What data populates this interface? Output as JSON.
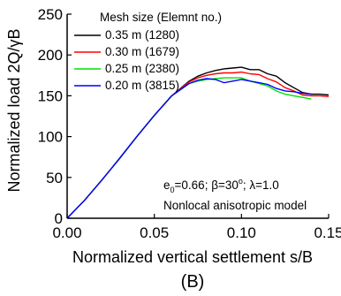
{
  "chart_data": {
    "type": "line",
    "xlabel": "Normalized vertical settlement s/B",
    "ylabel": "Normalized load 2Q/γB",
    "xlim": [
      0,
      0.15
    ],
    "ylim": [
      0,
      250
    ],
    "xticks": [
      "0.00",
      "0.05",
      "0.10",
      "0.15"
    ],
    "yticks": [
      "0",
      "50",
      "100",
      "150",
      "200",
      "250"
    ],
    "grid": false,
    "legend": {
      "title": "Mesh size (Elemnt no.)",
      "position": "top-right"
    },
    "series": [
      {
        "name": "0.35 m (1280)",
        "color": "#000000",
        "x": [
          0,
          0.01,
          0.02,
          0.03,
          0.04,
          0.05,
          0.06,
          0.07,
          0.075,
          0.08,
          0.085,
          0.09,
          0.095,
          0.1,
          0.105,
          0.11,
          0.115,
          0.12,
          0.125,
          0.13,
          0.135,
          0.14,
          0.145,
          0.15
        ],
        "y": [
          0,
          22,
          47,
          73,
          100,
          126,
          150,
          168,
          174,
          178,
          181,
          183,
          184,
          185,
          182,
          182,
          177,
          174,
          166,
          160,
          154,
          152,
          152,
          151
        ]
      },
      {
        "name": "0.30 m (1679)",
        "color": "#ff0000",
        "x": [
          0,
          0.01,
          0.02,
          0.03,
          0.04,
          0.05,
          0.06,
          0.07,
          0.075,
          0.08,
          0.085,
          0.09,
          0.095,
          0.1,
          0.105,
          0.11,
          0.115,
          0.12,
          0.125,
          0.13,
          0.135,
          0.14,
          0.145,
          0.15
        ],
        "y": [
          0,
          22,
          47,
          73,
          100,
          126,
          150,
          167,
          172,
          175,
          177,
          178,
          178,
          179,
          177,
          176,
          171,
          167,
          160,
          156,
          151,
          150,
          150,
          149
        ]
      },
      {
        "name": "0.25 m (2380)",
        "color": "#00e000",
        "x": [
          0,
          0.01,
          0.02,
          0.03,
          0.04,
          0.05,
          0.06,
          0.07,
          0.075,
          0.08,
          0.085,
          0.09,
          0.095,
          0.1,
          0.105,
          0.11,
          0.115,
          0.12,
          0.125,
          0.13,
          0.135,
          0.14
        ],
        "y": [
          0,
          22,
          47,
          73,
          100,
          126,
          150,
          165,
          168,
          170,
          171,
          172,
          172,
          172,
          168,
          165,
          162,
          156,
          152,
          150,
          148,
          146
        ]
      },
      {
        "name": "0.20 m (3815)",
        "color": "#0000ff",
        "x": [
          0,
          0.01,
          0.02,
          0.03,
          0.04,
          0.05,
          0.06,
          0.07,
          0.075,
          0.08,
          0.085,
          0.09,
          0.095,
          0.1,
          0.105,
          0.11,
          0.115,
          0.12,
          0.125,
          0.13,
          0.135,
          0.14
        ],
        "y": [
          0,
          22,
          47,
          73,
          100,
          126,
          150,
          165,
          169,
          171,
          170,
          166,
          168,
          170,
          168,
          166,
          164,
          159,
          156,
          155,
          153,
          152
        ]
      }
    ],
    "annotations": [
      "Nonlocal anisotropic model"
    ],
    "annotation_params": {
      "e": "e",
      "e_sub": "0",
      "e_val": "=0.66; β=30",
      "deg": "o",
      "rest": "; λ=1.0"
    },
    "panel_label": "(B)"
  }
}
